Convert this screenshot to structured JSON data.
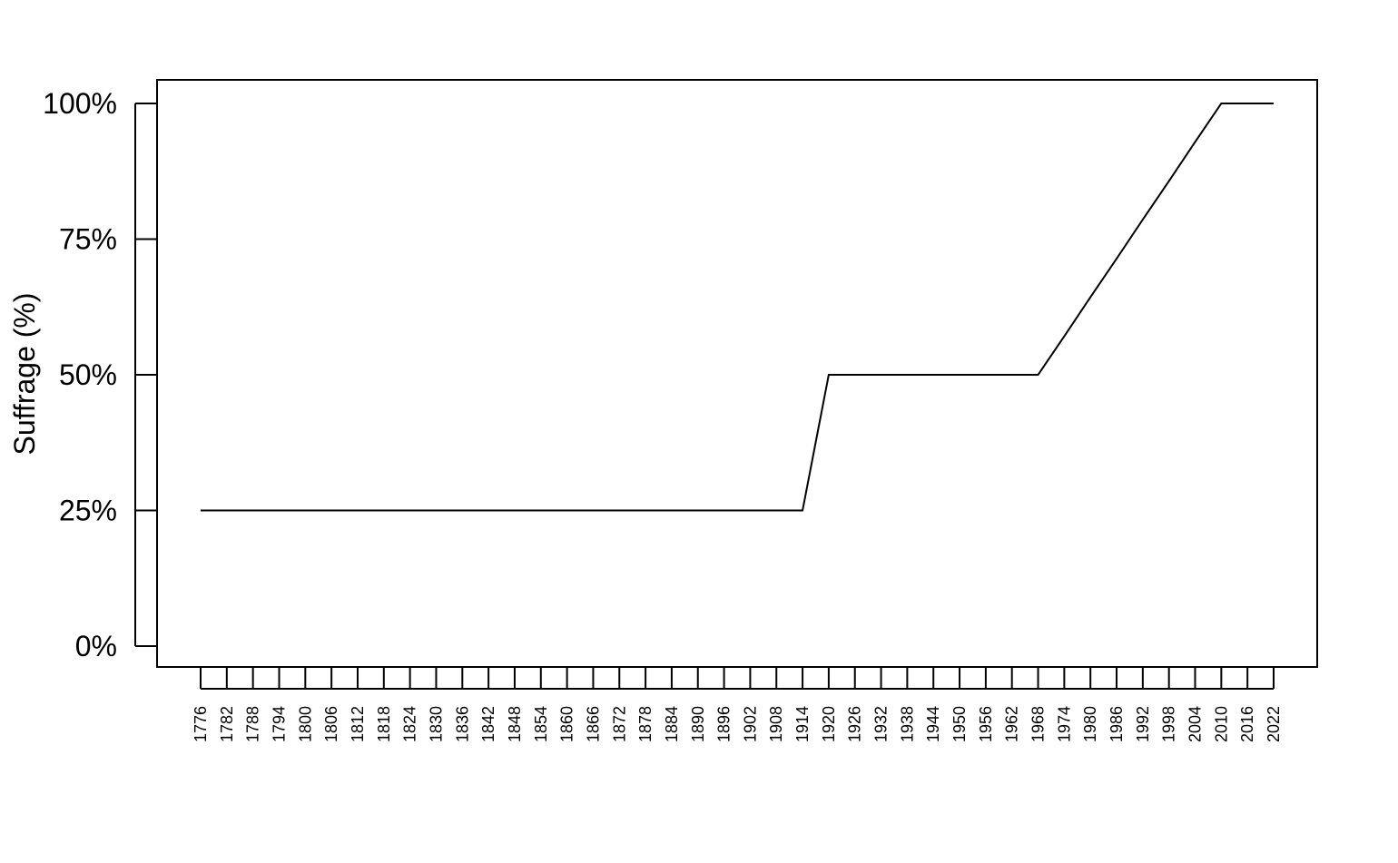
{
  "chart_data": {
    "type": "line",
    "title": "",
    "xlabel": "",
    "ylabel": "Suffrage (%)",
    "x": [
      1776,
      1782,
      1788,
      1794,
      1800,
      1806,
      1812,
      1818,
      1824,
      1830,
      1836,
      1842,
      1848,
      1854,
      1860,
      1866,
      1872,
      1878,
      1884,
      1890,
      1896,
      1902,
      1908,
      1914,
      1920,
      1926,
      1932,
      1938,
      1944,
      1950,
      1956,
      1962,
      1968,
      1974,
      1980,
      1986,
      1992,
      1998,
      2004,
      2010,
      2016,
      2022
    ],
    "values": [
      25,
      25,
      25,
      25,
      25,
      25,
      25,
      25,
      25,
      25,
      25,
      25,
      25,
      25,
      25,
      25,
      25,
      25,
      25,
      25,
      25,
      25,
      25,
      25,
      50,
      50,
      50,
      50,
      50,
      50,
      50,
      50,
      50,
      57.1,
      64.3,
      71.4,
      78.6,
      85.7,
      92.9,
      100,
      100,
      100
    ],
    "xticks": [
      "1776",
      "1782",
      "1788",
      "1794",
      "1800",
      "1806",
      "1812",
      "1818",
      "1824",
      "1830",
      "1836",
      "1842",
      "1848",
      "1854",
      "1860",
      "1866",
      "1872",
      "1878",
      "1884",
      "1890",
      "1896",
      "1902",
      "1908",
      "1914",
      "1920",
      "1926",
      "1932",
      "1938",
      "1944",
      "1950",
      "1956",
      "1962",
      "1968",
      "1974",
      "1980",
      "1986",
      "1992",
      "1998",
      "2004",
      "2010",
      "2016",
      "2022"
    ],
    "yticks": [
      0,
      25,
      50,
      75,
      100
    ],
    "ytick_labels": [
      "0%",
      "25%",
      "50%",
      "75%",
      "100%"
    ],
    "ylim": [
      0,
      100
    ],
    "grid": false,
    "legend": "none",
    "line_color": "#000000"
  }
}
